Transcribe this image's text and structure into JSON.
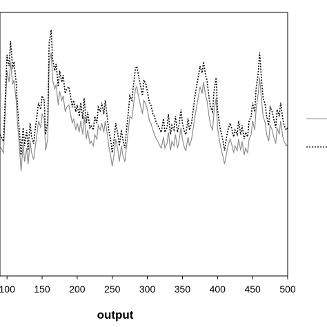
{
  "chart_data": {
    "type": "line",
    "xlabel": "output",
    "ylabel": "",
    "xlim": [
      90,
      500
    ],
    "ylim": [
      0,
      1
    ],
    "x_ticks": [
      100,
      150,
      200,
      250,
      300,
      350,
      400,
      450,
      500
    ],
    "x_tick_labels": [
      "100",
      "150",
      "200",
      "250",
      "300",
      "350",
      "400",
      "450",
      "500"
    ],
    "grid": false,
    "legend_position": "right",
    "series": [
      {
        "style": "solid",
        "color": "#8c8c8c",
        "x": [
          90,
          95,
          100,
          103,
          105,
          108,
          110,
          113,
          115,
          118,
          120,
          123,
          125,
          128,
          130,
          133,
          135,
          138,
          140,
          143,
          145,
          148,
          150,
          153,
          155,
          158,
          160,
          163,
          165,
          168,
          170,
          173,
          175,
          178,
          180,
          183,
          185,
          188,
          190,
          193,
          195,
          198,
          200,
          203,
          205,
          208,
          210,
          213,
          215,
          218,
          220,
          223,
          225,
          228,
          230,
          233,
          235,
          238,
          240,
          243,
          245,
          248,
          250,
          253,
          255,
          258,
          260,
          263,
          265,
          268,
          270,
          273,
          275,
          278,
          280,
          283,
          285,
          288,
          290,
          293,
          295,
          298,
          300,
          303,
          305,
          308,
          310,
          313,
          315,
          318,
          320,
          323,
          325,
          328,
          330,
          333,
          335,
          338,
          340,
          343,
          345,
          348,
          350,
          353,
          355,
          358,
          360,
          363,
          365,
          368,
          370,
          373,
          375,
          378,
          380,
          383,
          385,
          388,
          390,
          393,
          395,
          398,
          400,
          403,
          405,
          408,
          410,
          413,
          415,
          418,
          420,
          423,
          425,
          428,
          430,
          433,
          435,
          438,
          440,
          443,
          445,
          448,
          450,
          453,
          455,
          458,
          460,
          463,
          465,
          468,
          470,
          473,
          475,
          478,
          480,
          483,
          485,
          488,
          490,
          493,
          495,
          498,
          500
        ],
        "y": [
          0.45,
          0.42,
          0.78,
          0.73,
          0.82,
          0.72,
          0.74,
          0.65,
          0.55,
          0.43,
          0.34,
          0.46,
          0.38,
          0.44,
          0.37,
          0.47,
          0.42,
          0.39,
          0.44,
          0.51,
          0.56,
          0.53,
          0.59,
          0.57,
          0.43,
          0.48,
          0.81,
          0.86,
          0.74,
          0.7,
          0.72,
          0.63,
          0.69,
          0.65,
          0.67,
          0.6,
          0.62,
          0.63,
          0.6,
          0.55,
          0.57,
          0.52,
          0.55,
          0.51,
          0.56,
          0.5,
          0.58,
          0.48,
          0.52,
          0.46,
          0.47,
          0.45,
          0.5,
          0.48,
          0.54,
          0.52,
          0.55,
          0.51,
          0.56,
          0.5,
          0.45,
          0.4,
          0.36,
          0.42,
          0.48,
          0.43,
          0.38,
          0.45,
          0.41,
          0.38,
          0.44,
          0.52,
          0.58,
          0.57,
          0.62,
          0.7,
          0.71,
          0.66,
          0.63,
          0.59,
          0.65,
          0.63,
          0.61,
          0.56,
          0.55,
          0.52,
          0.5,
          0.48,
          0.47,
          0.45,
          0.44,
          0.49,
          0.44,
          0.46,
          0.51,
          0.43,
          0.47,
          0.45,
          0.5,
          0.44,
          0.47,
          0.53,
          0.48,
          0.44,
          0.43,
          0.49,
          0.45,
          0.48,
          0.52,
          0.58,
          0.62,
          0.67,
          0.71,
          0.68,
          0.73,
          0.67,
          0.65,
          0.58,
          0.54,
          0.52,
          0.6,
          0.66,
          0.53,
          0.47,
          0.44,
          0.4,
          0.37,
          0.42,
          0.45,
          0.48,
          0.46,
          0.42,
          0.45,
          0.43,
          0.48,
          0.43,
          0.47,
          0.41,
          0.44,
          0.42,
          0.48,
          0.5,
          0.56,
          0.52,
          0.61,
          0.68,
          0.75,
          0.64,
          0.58,
          0.55,
          0.5,
          0.47,
          0.54,
          0.52,
          0.49,
          0.46,
          0.53,
          0.5,
          0.56,
          0.49,
          0.47,
          0.45,
          0.46
        ]
      },
      {
        "style": "dotted",
        "color": "#000000",
        "x": [
          90,
          95,
          100,
          103,
          105,
          108,
          110,
          113,
          115,
          118,
          120,
          123,
          125,
          128,
          130,
          133,
          135,
          138,
          140,
          143,
          145,
          148,
          150,
          153,
          155,
          158,
          160,
          163,
          165,
          168,
          170,
          173,
          175,
          178,
          180,
          183,
          185,
          188,
          190,
          193,
          195,
          198,
          200,
          203,
          205,
          208,
          210,
          213,
          215,
          218,
          220,
          223,
          225,
          228,
          230,
          233,
          235,
          238,
          240,
          243,
          245,
          248,
          250,
          253,
          255,
          258,
          260,
          263,
          265,
          268,
          270,
          273,
          275,
          278,
          280,
          283,
          285,
          288,
          290,
          293,
          295,
          298,
          300,
          303,
          305,
          308,
          310,
          313,
          315,
          318,
          320,
          323,
          325,
          328,
          330,
          333,
          335,
          338,
          340,
          343,
          345,
          348,
          350,
          353,
          355,
          358,
          360,
          363,
          365,
          368,
          370,
          373,
          375,
          378,
          380,
          383,
          385,
          388,
          390,
          393,
          395,
          398,
          400,
          403,
          405,
          408,
          410,
          413,
          415,
          418,
          420,
          423,
          425,
          428,
          430,
          433,
          435,
          438,
          440,
          443,
          445,
          448,
          450,
          453,
          455,
          458,
          460,
          463,
          465,
          468,
          470,
          473,
          475,
          478,
          480,
          483,
          485,
          488,
          490,
          493,
          495,
          498,
          500
        ],
        "y": [
          0.5,
          0.47,
          0.85,
          0.8,
          0.91,
          0.79,
          0.82,
          0.73,
          0.62,
          0.5,
          0.41,
          0.53,
          0.45,
          0.52,
          0.43,
          0.55,
          0.49,
          0.46,
          0.52,
          0.59,
          0.64,
          0.61,
          0.67,
          0.65,
          0.5,
          0.56,
          0.9,
          0.96,
          0.83,
          0.78,
          0.81,
          0.71,
          0.78,
          0.73,
          0.76,
          0.68,
          0.7,
          0.71,
          0.68,
          0.62,
          0.65,
          0.6,
          0.63,
          0.58,
          0.64,
          0.57,
          0.66,
          0.55,
          0.6,
          0.53,
          0.54,
          0.52,
          0.58,
          0.55,
          0.62,
          0.6,
          0.64,
          0.59,
          0.65,
          0.57,
          0.52,
          0.47,
          0.42,
          0.49,
          0.55,
          0.5,
          0.45,
          0.52,
          0.48,
          0.44,
          0.51,
          0.6,
          0.67,
          0.65,
          0.71,
          0.79,
          0.8,
          0.75,
          0.72,
          0.67,
          0.74,
          0.72,
          0.69,
          0.64,
          0.63,
          0.59,
          0.58,
          0.55,
          0.54,
          0.52,
          0.51,
          0.57,
          0.51,
          0.53,
          0.59,
          0.5,
          0.54,
          0.52,
          0.58,
          0.51,
          0.54,
          0.61,
          0.55,
          0.51,
          0.5,
          0.57,
          0.52,
          0.55,
          0.6,
          0.67,
          0.71,
          0.76,
          0.8,
          0.77,
          0.82,
          0.76,
          0.74,
          0.66,
          0.62,
          0.6,
          0.69,
          0.75,
          0.61,
          0.54,
          0.51,
          0.47,
          0.43,
          0.49,
          0.52,
          0.55,
          0.53,
          0.49,
          0.52,
          0.5,
          0.56,
          0.5,
          0.54,
          0.48,
          0.51,
          0.49,
          0.56,
          0.58,
          0.64,
          0.6,
          0.7,
          0.77,
          0.86,
          0.73,
          0.66,
          0.63,
          0.58,
          0.54,
          0.62,
          0.6,
          0.57,
          0.53,
          0.61,
          0.58,
          0.64,
          0.57,
          0.54,
          0.52,
          0.53
        ]
      }
    ]
  }
}
